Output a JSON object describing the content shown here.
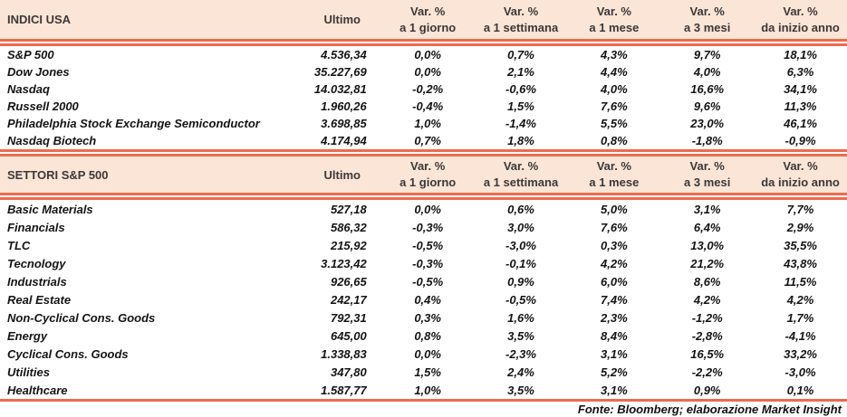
{
  "colors": {
    "band_background": "#FBE5D6",
    "rule_salmon": "#ED6B4E",
    "text": "#1F1F1F"
  },
  "columns": {
    "ultimo": "Ultimo",
    "var_label": "Var. %",
    "periods": [
      "a 1 giorno",
      "a 1 settimana",
      "a 1 mese",
      "a 3 mesi",
      "da inizio anno"
    ]
  },
  "tables": [
    {
      "title": "INDICI USA",
      "rows": [
        {
          "name": "S&P 500",
          "ultimo": "4.536,34",
          "vars": [
            "0,0%",
            "0,7%",
            "4,3%",
            "9,7%",
            "18,1%"
          ]
        },
        {
          "name": "Dow Jones",
          "ultimo": "35.227,69",
          "vars": [
            "0,0%",
            "2,1%",
            "4,4%",
            "4,0%",
            "6,3%"
          ]
        },
        {
          "name": "Nasdaq",
          "ultimo": "14.032,81",
          "vars": [
            "-0,2%",
            "-0,6%",
            "4,0%",
            "16,6%",
            "34,1%"
          ]
        },
        {
          "name": "Russell 2000",
          "ultimo": "1.960,26",
          "vars": [
            "-0,4%",
            "1,5%",
            "7,6%",
            "9,6%",
            "11,3%"
          ]
        },
        {
          "name": "Philadelphia Stock Exchange Semiconductor",
          "ultimo": "3.698,85",
          "vars": [
            "1,0%",
            "-1,4%",
            "5,5%",
            "23,0%",
            "46,1%"
          ]
        },
        {
          "name": "Nasdaq Biotech",
          "ultimo": "4.174,94",
          "vars": [
            "0,7%",
            "1,8%",
            "0,8%",
            "-1,8%",
            "-0,9%"
          ]
        }
      ]
    },
    {
      "title": "SETTORI S&P 500",
      "rows": [
        {
          "name": "Basic Materials",
          "ultimo": "527,18",
          "vars": [
            "0,0%",
            "0,6%",
            "5,0%",
            "3,1%",
            "7,7%"
          ]
        },
        {
          "name": "Financials",
          "ultimo": "586,32",
          "vars": [
            "-0,3%",
            "3,0%",
            "7,6%",
            "6,4%",
            "2,9%"
          ]
        },
        {
          "name": "TLC",
          "ultimo": "215,92",
          "vars": [
            "-0,5%",
            "-3,0%",
            "0,3%",
            "13,0%",
            "35,5%"
          ]
        },
        {
          "name": "Tecnology",
          "ultimo": "3.123,42",
          "vars": [
            "-0,3%",
            "-0,1%",
            "4,2%",
            "21,2%",
            "43,8%"
          ]
        },
        {
          "name": "Industrials",
          "ultimo": "926,65",
          "vars": [
            "-0,5%",
            "0,9%",
            "6,0%",
            "8,6%",
            "11,5%"
          ]
        },
        {
          "name": "Real Estate",
          "ultimo": "242,17",
          "vars": [
            "0,4%",
            "-0,5%",
            "7,4%",
            "4,2%",
            "4,2%"
          ]
        },
        {
          "name": "Non-Cyclical Cons. Goods",
          "ultimo": "792,31",
          "vars": [
            "0,3%",
            "1,6%",
            "2,3%",
            "-1,2%",
            "1,7%"
          ]
        },
        {
          "name": "Energy",
          "ultimo": "645,00",
          "vars": [
            "0,8%",
            "3,5%",
            "8,4%",
            "-2,8%",
            "-4,1%"
          ]
        },
        {
          "name": "Cyclical Cons. Goods",
          "ultimo": "1.338,83",
          "vars": [
            "0,0%",
            "-2,3%",
            "3,1%",
            "16,5%",
            "33,2%"
          ]
        },
        {
          "name": "Utilities",
          "ultimo": "347,80",
          "vars": [
            "1,5%",
            "2,4%",
            "5,2%",
            "-2,2%",
            "-3,0%"
          ]
        },
        {
          "name": "Healthcare",
          "ultimo": "1.587,77",
          "vars": [
            "1,0%",
            "3,5%",
            "3,1%",
            "0,9%",
            "0,1%"
          ]
        }
      ]
    }
  ],
  "footer": "Fonte: Bloomberg; elaborazione Market Insight"
}
